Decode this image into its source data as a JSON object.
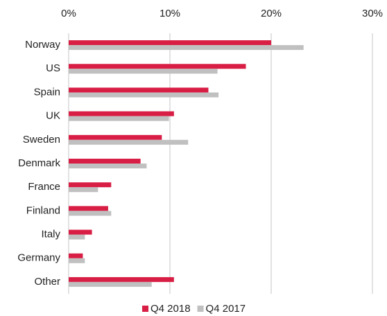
{
  "chart_data": {
    "type": "hbar",
    "categories": [
      "Norway",
      "US",
      "Spain",
      "UK",
      "Sweden",
      "Denmark",
      "France",
      "Finland",
      "Italy",
      "Germany",
      "Other"
    ],
    "series": [
      {
        "name": "Q4 2018",
        "color": "#d81e44",
        "values": [
          20.0,
          17.5,
          13.8,
          10.4,
          9.2,
          7.1,
          4.2,
          3.9,
          2.3,
          1.4,
          10.4
        ]
      },
      {
        "name": "Q4 2017",
        "color": "#c0c0c0",
        "values": [
          23.2,
          14.7,
          14.8,
          9.9,
          11.8,
          7.7,
          2.9,
          4.2,
          1.6,
          1.6,
          8.2
        ]
      }
    ],
    "xlim": [
      0,
      30
    ],
    "xticks": [
      {
        "value": 0,
        "label": "0%"
      },
      {
        "value": 10,
        "label": "10%"
      },
      {
        "value": 20,
        "label": "20%"
      },
      {
        "value": 30,
        "label": "30%"
      }
    ],
    "grid": true,
    "legend": "bottom"
  }
}
